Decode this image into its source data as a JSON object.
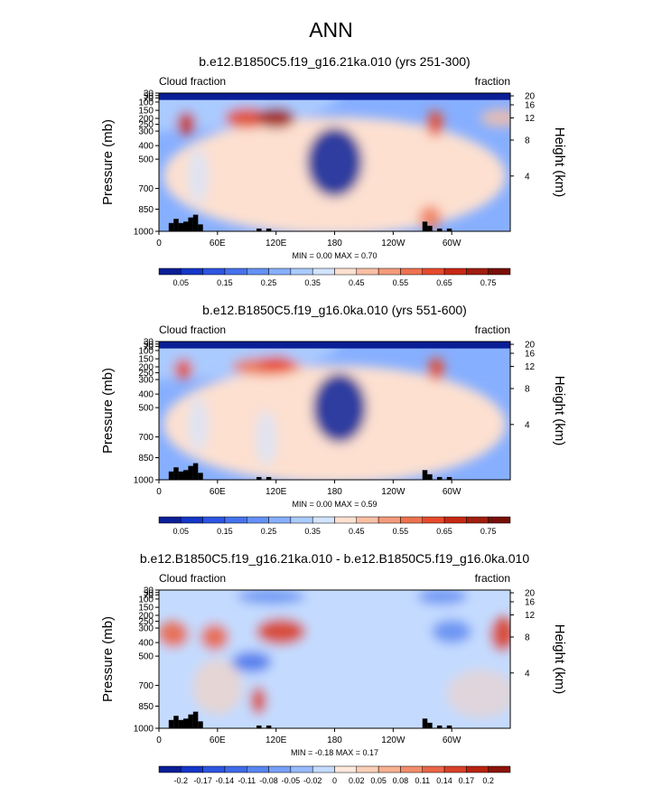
{
  "page_title": "ANN",
  "chart_data": [
    {
      "type": "heatmap",
      "title": "b.e12.B1850C5.f19_g16.21ka.010 (yrs 251-300)",
      "left_label": "Cloud fraction",
      "right_label": "fraction",
      "ylabel_left": "Pressure (mb)",
      "ylabel_right": "Height (km)",
      "x_ticks": [
        "0",
        "60E",
        "120E",
        "180",
        "120W",
        "60W"
      ],
      "y_ticks_pressure": [
        "30",
        "50",
        "70",
        "100",
        "150",
        "200",
        "250",
        "300",
        "400",
        "500",
        "700",
        "850",
        "1000"
      ],
      "y_ticks_height": [
        "20",
        "16",
        "12",
        "8",
        "4"
      ],
      "stats": "MIN =   0.00  MAX =   0.70",
      "min": 0.0,
      "max": 0.7,
      "colorbar_labels": [
        "0.05",
        "0.15",
        "0.25",
        "0.35",
        "0.45",
        "0.55",
        "0.65",
        "0.75"
      ],
      "colorbar_colors": [
        "#0a1e96",
        "#1437c8",
        "#2d55e1",
        "#4673ec",
        "#6491f5",
        "#87afff",
        "#aacbff",
        "#d2e4ff",
        "#fde0d0",
        "#f9bfa5",
        "#f49b7c",
        "#ee7350",
        "#e64a2d",
        "#c82814",
        "#a01e0f",
        "#780f08"
      ]
    },
    {
      "type": "heatmap",
      "title": "b.e12.B1850C5.f19_g16.0ka.010 (yrs 551-600)",
      "left_label": "Cloud fraction",
      "right_label": "fraction",
      "ylabel_left": "Pressure (mb)",
      "ylabel_right": "Height (km)",
      "x_ticks": [
        "0",
        "60E",
        "120E",
        "180",
        "120W",
        "60W"
      ],
      "y_ticks_pressure": [
        "30",
        "50",
        "70",
        "100",
        "150",
        "200",
        "250",
        "300",
        "400",
        "500",
        "700",
        "850",
        "1000"
      ],
      "y_ticks_height": [
        "20",
        "16",
        "12",
        "8",
        "4"
      ],
      "stats": "MIN =   0.00  MAX =   0.59",
      "min": 0.0,
      "max": 0.59,
      "colorbar_labels": [
        "0.05",
        "0.15",
        "0.25",
        "0.35",
        "0.45",
        "0.55",
        "0.65",
        "0.75"
      ],
      "colorbar_colors": [
        "#0a1e96",
        "#1437c8",
        "#2d55e1",
        "#4673ec",
        "#6491f5",
        "#87afff",
        "#aacbff",
        "#d2e4ff",
        "#fde0d0",
        "#f9bfa5",
        "#f49b7c",
        "#ee7350",
        "#e64a2d",
        "#c82814",
        "#a01e0f",
        "#780f08"
      ]
    },
    {
      "type": "heatmap",
      "title": "b.e12.B1850C5.f19_g16.21ka.010 - b.e12.B1850C5.f19_g16.0ka.010",
      "left_label": "Cloud fraction",
      "right_label": "fraction",
      "ylabel_left": "Pressure (mb)",
      "ylabel_right": "Height (km)",
      "x_ticks": [
        "0",
        "60E",
        "120E",
        "180",
        "120W",
        "60W"
      ],
      "y_ticks_pressure": [
        "30",
        "50",
        "70",
        "100",
        "150",
        "200",
        "250",
        "300",
        "400",
        "500",
        "700",
        "850",
        "1000"
      ],
      "y_ticks_height": [
        "20",
        "16",
        "12",
        "8",
        "4"
      ],
      "stats": "MIN =  -0.18  MAX =   0.17",
      "min": -0.18,
      "max": 0.17,
      "colorbar_labels": [
        "-0.2",
        "-0.17",
        "-0.14",
        "-0.11",
        "-0.08",
        "-0.05",
        "-0.02",
        "0",
        "0.02",
        "0.05",
        "0.08",
        "0.11",
        "0.14",
        "0.17",
        "0.2"
      ],
      "colorbar_colors": [
        "#0a1e96",
        "#1437c8",
        "#2d55e1",
        "#3f6ae8",
        "#5885f0",
        "#779ff7",
        "#98bafc",
        "#c4dbff",
        "#fde8dc",
        "#fbd0b8",
        "#f7b090",
        "#f28d6b",
        "#ea6547",
        "#d93f27",
        "#b8230f",
        "#8c140a"
      ]
    }
  ]
}
